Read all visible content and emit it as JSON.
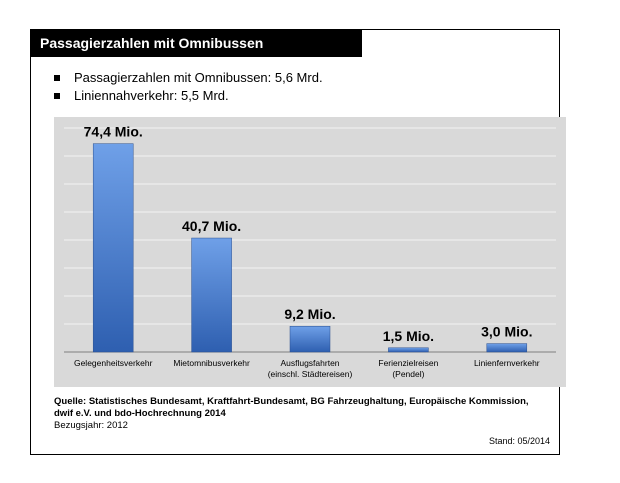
{
  "header": {
    "title": "Passagierzahlen mit Omnibussen"
  },
  "bullets": [
    "Passagierzahlen mit Omnibussen: 5,6 Mrd.",
    "Liniennahverkehr: 5,5 Mrd."
  ],
  "chart_data": {
    "type": "bar",
    "categories": [
      "Gelegenheitsverkehr",
      "Mietomnibusverkehr",
      "Ausflugsfahrten (einschl. Städtereisen)",
      "Ferienzielreisen (Pendel)",
      "Linienfernverkehr"
    ],
    "category_lines": [
      [
        "Gelegenheitsverkehr"
      ],
      [
        "Mietomnibusverkehr"
      ],
      [
        "Ausflugsfahrten",
        "(einschl. Städtereisen)"
      ],
      [
        "Ferienzielreisen",
        "(Pendel)"
      ],
      [
        "Linienfernverkehr"
      ]
    ],
    "values": [
      74.4,
      40.7,
      9.2,
      1.5,
      3.0
    ],
    "data_labels": [
      "74,4 Mio.",
      "40,7 Mio.",
      "9,2 Mio.",
      "1,5 Mio.",
      "3,0 Mio."
    ],
    "ylim": [
      0,
      80
    ],
    "grid": true,
    "colors": {
      "bar_top": "#6fa0e8",
      "bar_bottom": "#2e5fb0",
      "plot_bg": "#d9d9d9",
      "grid": "#f2f2f2"
    }
  },
  "footer": {
    "source_line1": "Quelle: Statistisches Bundesamt, Kraftfahrt-Bundesamt, BG Fahrzeughaltung, Europäische Kommission,",
    "source_line2": "dwif e.V. und bdo-Hochrechnung 2014",
    "reference_year": "Bezugsjahr: 2012",
    "stand": "Stand: 05/2014"
  }
}
